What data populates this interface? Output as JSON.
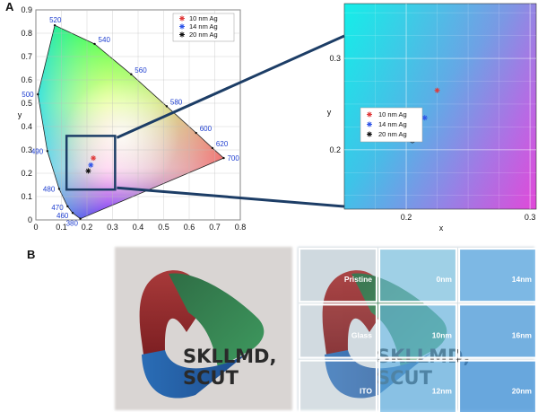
{
  "panels": {
    "a_label": "A",
    "b_label": "B"
  },
  "colors": {
    "series_10": "#e03a3a",
    "series_14": "#2f55e8",
    "series_20": "#111111",
    "zoom_box": "#1c3d66",
    "wavelength_text": "#1f3fd0"
  },
  "chart_data": [
    {
      "type": "scatter",
      "title": "",
      "xlabel": "",
      "ylabel": "y",
      "xlim": [
        0,
        0.8
      ],
      "ylim": [
        0,
        0.9
      ],
      "x_ticks": [
        "0",
        "0.1",
        "0.2",
        "0.3",
        "0.4",
        "0.5",
        "0.6",
        "0.7",
        "0.8"
      ],
      "y_ticks": [
        "0",
        "0.1",
        "0.2",
        "0.3",
        "0.4",
        "0.5",
        "0.6",
        "0.7",
        "0.8",
        "0.9"
      ],
      "grid": true,
      "legend_position": "top-right",
      "spectral_locus_labels": [
        {
          "nm": "380",
          "x": 0.174,
          "y": 0.005
        },
        {
          "nm": "460",
          "x": 0.144,
          "y": 0.03
        },
        {
          "nm": "470",
          "x": 0.124,
          "y": 0.058
        },
        {
          "nm": "480",
          "x": 0.091,
          "y": 0.133
        },
        {
          "nm": "490",
          "x": 0.045,
          "y": 0.295
        },
        {
          "nm": "500",
          "x": 0.008,
          "y": 0.538
        },
        {
          "nm": "520",
          "x": 0.074,
          "y": 0.834
        },
        {
          "nm": "540",
          "x": 0.23,
          "y": 0.754
        },
        {
          "nm": "560",
          "x": 0.373,
          "y": 0.624
        },
        {
          "nm": "580",
          "x": 0.512,
          "y": 0.487
        },
        {
          "nm": "600",
          "x": 0.627,
          "y": 0.373
        },
        {
          "nm": "620",
          "x": 0.691,
          "y": 0.308
        },
        {
          "nm": "700",
          "x": 0.735,
          "y": 0.265
        }
      ],
      "series": [
        {
          "name": "10 nm Ag",
          "x": [
            0.225
          ],
          "y": [
            0.265
          ]
        },
        {
          "name": "14 nm Ag",
          "x": [
            0.215
          ],
          "y": [
            0.235
          ]
        },
        {
          "name": "20 nm Ag",
          "x": [
            0.205
          ],
          "y": [
            0.21
          ]
        }
      ],
      "zoom_region": {
        "x": [
          0.12,
          0.31
        ],
        "y": [
          0.13,
          0.36
        ]
      }
    },
    {
      "type": "scatter",
      "title": "",
      "xlabel": "x",
      "ylabel": "y",
      "xlim": [
        0.15,
        0.305
      ],
      "ylim": [
        0.135,
        0.36
      ],
      "x_ticks": [
        "0.2",
        "0.3"
      ],
      "y_ticks": [
        "0.2",
        "0.3"
      ],
      "grid": true,
      "legend_position": "center-left",
      "series": [
        {
          "name": "10 nm Ag",
          "x": [
            0.225
          ],
          "y": [
            0.265
          ]
        },
        {
          "name": "14 nm Ag",
          "x": [
            0.215
          ],
          "y": [
            0.235
          ]
        },
        {
          "name": "20 nm Ag",
          "x": [
            0.205
          ],
          "y": [
            0.21
          ]
        }
      ]
    }
  ],
  "photos": {
    "logo_line1": "SKLLMD,",
    "logo_line2": "SCUT",
    "tiles": [
      "Pristine",
      "0nm",
      "14nm",
      "Glass",
      "10nm",
      "16nm",
      "ITO",
      "12nm",
      "20nm"
    ]
  }
}
